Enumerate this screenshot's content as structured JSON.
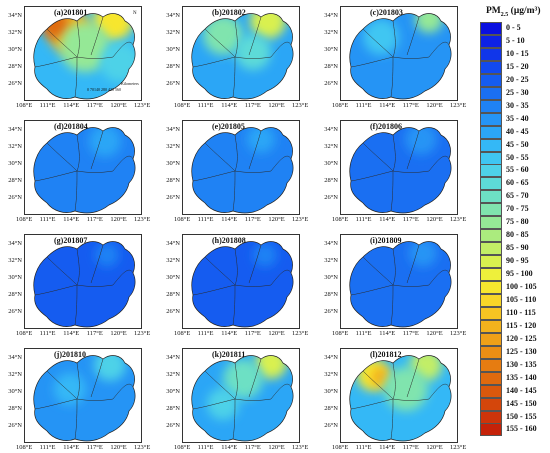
{
  "legend": {
    "title": "PM2.5 (μg/m³)",
    "classes": [
      {
        "label": "0 - 5",
        "color": "#0a10e0"
      },
      {
        "label": "5 - 10",
        "color": "#0d22e6"
      },
      {
        "label": "10 - 15",
        "color": "#1036ea"
      },
      {
        "label": "15 - 20",
        "color": "#1249ee"
      },
      {
        "label": "20 - 25",
        "color": "#155cf0"
      },
      {
        "label": "25 - 30",
        "color": "#1a6ff2"
      },
      {
        "label": "30 - 35",
        "color": "#1f82f4"
      },
      {
        "label": "35 - 40",
        "color": "#2594f5"
      },
      {
        "label": "40 - 45",
        "color": "#2ba6f6"
      },
      {
        "label": "45 - 50",
        "color": "#34b8f6"
      },
      {
        "label": "50 - 55",
        "color": "#3fc6f2"
      },
      {
        "label": "55 - 60",
        "color": "#4ed2e8"
      },
      {
        "label": "60 - 65",
        "color": "#5ddbd8"
      },
      {
        "label": "65 - 70",
        "color": "#6de0c4"
      },
      {
        "label": "70 - 75",
        "color": "#80e4ae"
      },
      {
        "label": "75 - 80",
        "color": "#95e896"
      },
      {
        "label": "80 - 85",
        "color": "#abeb7e"
      },
      {
        "label": "85 - 90",
        "color": "#c3ee66"
      },
      {
        "label": "90 - 95",
        "color": "#d9f04f"
      },
      {
        "label": "95 - 100",
        "color": "#eef03b"
      },
      {
        "label": "100 - 105",
        "color": "#f7e62e"
      },
      {
        "label": "105 - 110",
        "color": "#f8d628"
      },
      {
        "label": "110 - 115",
        "color": "#f6c422"
      },
      {
        "label": "115 - 120",
        "color": "#f3b21d"
      },
      {
        "label": "120 - 125",
        "color": "#efa018"
      },
      {
        "label": "125 - 130",
        "color": "#eb8e14"
      },
      {
        "label": "130 - 135",
        "color": "#e67c11"
      },
      {
        "label": "135 - 140",
        "color": "#e06a0e"
      },
      {
        "label": "140 - 145",
        "color": "#da580c"
      },
      {
        "label": "145 - 150",
        "color": "#d4460b"
      },
      {
        "label": "150 - 155",
        "color": "#cd340a"
      },
      {
        "label": "155 - 160",
        "color": "#c52209"
      }
    ]
  },
  "axes": {
    "lat_labels": [
      "34°N",
      "32°N",
      "30°N",
      "28°N",
      "26°N"
    ],
    "lon_labels": [
      "108°E",
      "111°E",
      "114°E",
      "117°E",
      "120°E",
      "123°E"
    ]
  },
  "scale_bar": "0 70140   280   420   560",
  "scale_unit": "Kilometers",
  "compass_label": "N",
  "panels": [
    {
      "label": "(a)201801",
      "base": "#34b8f6",
      "hot": [
        {
          "cx": 45,
          "cy": 25,
          "r": 22,
          "color": "#f3b21d"
        },
        {
          "cx": 30,
          "cy": 18,
          "r": 14,
          "color": "#e06a0e"
        },
        {
          "cx": 88,
          "cy": 14,
          "r": 20,
          "color": "#f7e62e"
        },
        {
          "cx": 60,
          "cy": 40,
          "r": 25,
          "color": "#95e896"
        },
        {
          "cx": 95,
          "cy": 55,
          "r": 20,
          "color": "#4ed2e8"
        }
      ]
    },
    {
      "label": "(b)201802",
      "base": "#2ba6f6",
      "hot": [
        {
          "cx": 85,
          "cy": 14,
          "r": 18,
          "color": "#d9f04f"
        },
        {
          "cx": 40,
          "cy": 28,
          "r": 20,
          "color": "#80e4ae"
        },
        {
          "cx": 70,
          "cy": 45,
          "r": 18,
          "color": "#5ddbd8"
        }
      ]
    },
    {
      "label": "(c)201803",
      "base": "#2594f5",
      "hot": [
        {
          "cx": 88,
          "cy": 12,
          "r": 14,
          "color": "#95e896"
        },
        {
          "cx": 40,
          "cy": 30,
          "r": 18,
          "color": "#3fc6f2"
        }
      ]
    },
    {
      "label": "(d)201804",
      "base": "#1f82f4",
      "hot": [
        {
          "cx": 80,
          "cy": 20,
          "r": 16,
          "color": "#2ba6f6"
        }
      ]
    },
    {
      "label": "(e)201805",
      "base": "#1f82f4",
      "hot": [
        {
          "cx": 78,
          "cy": 18,
          "r": 14,
          "color": "#2ba6f6"
        }
      ]
    },
    {
      "label": "(f)201806",
      "base": "#1a6ff2",
      "hot": [
        {
          "cx": 80,
          "cy": 18,
          "r": 16,
          "color": "#2594f5"
        }
      ]
    },
    {
      "label": "(g)201807",
      "base": "#155cf0",
      "hot": [
        {
          "cx": 82,
          "cy": 20,
          "r": 12,
          "color": "#1f82f4"
        }
      ]
    },
    {
      "label": "(h)201808",
      "base": "#155cf0",
      "hot": [
        {
          "cx": 82,
          "cy": 20,
          "r": 12,
          "color": "#1f82f4"
        }
      ]
    },
    {
      "label": "(i)201809",
      "base": "#1a6ff2",
      "hot": [
        {
          "cx": 82,
          "cy": 18,
          "r": 14,
          "color": "#2594f5"
        }
      ]
    },
    {
      "label": "(j)201810",
      "base": "#2594f5",
      "hot": [
        {
          "cx": 85,
          "cy": 16,
          "r": 16,
          "color": "#4ed2e8"
        },
        {
          "cx": 45,
          "cy": 40,
          "r": 16,
          "color": "#34b8f6"
        }
      ]
    },
    {
      "label": "(k)201811",
      "base": "#2ba6f6",
      "hot": [
        {
          "cx": 88,
          "cy": 14,
          "r": 16,
          "color": "#d9f04f"
        },
        {
          "cx": 60,
          "cy": 30,
          "r": 20,
          "color": "#6de0c4"
        },
        {
          "cx": 40,
          "cy": 55,
          "r": 16,
          "color": "#4ed2e8"
        }
      ]
    },
    {
      "label": "(l)201812",
      "base": "#34b8f6",
      "hot": [
        {
          "cx": 32,
          "cy": 26,
          "r": 16,
          "color": "#f7e62e"
        },
        {
          "cx": 40,
          "cy": 28,
          "r": 10,
          "color": "#f3b21d"
        },
        {
          "cx": 85,
          "cy": 16,
          "r": 16,
          "color": "#c3ee66"
        },
        {
          "cx": 65,
          "cy": 40,
          "r": 22,
          "color": "#80e4ae"
        }
      ]
    }
  ]
}
